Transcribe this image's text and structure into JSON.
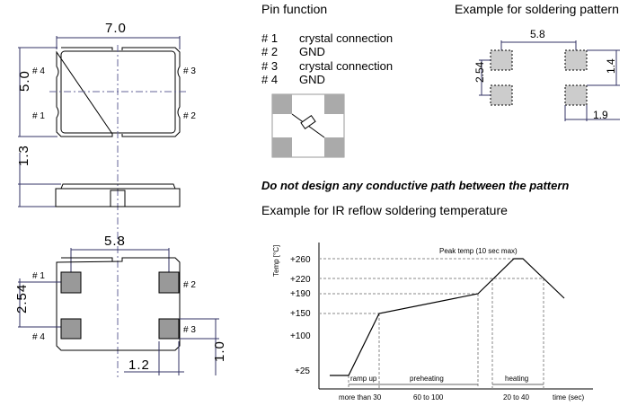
{
  "top_view": {
    "width": "7.0",
    "height": "5.0",
    "pins": [
      "# 4",
      "# 3",
      "# 1",
      "# 2"
    ]
  },
  "side_view": {
    "thickness": "1.3"
  },
  "bottom_view": {
    "pad_pitch_x": "5.8",
    "pad_pitch_y": "2.54",
    "pad_height": "1.0",
    "pad_width": "1.2",
    "pins": [
      "# 1",
      "# 2",
      "# 4",
      "# 3"
    ]
  },
  "pin_function": {
    "title": "Pin function",
    "rows": [
      {
        "pin": "# 1",
        "function": "crystal connection"
      },
      {
        "pin": "# 2",
        "function": "GND"
      },
      {
        "pin": "# 3",
        "function": "crystal connection"
      },
      {
        "pin": "# 4",
        "function": "GND"
      }
    ]
  },
  "soldering_pattern": {
    "title": "Example for soldering pattern",
    "pitch_x": "5.8",
    "pitch_y": "2.54",
    "pad_h": "1.4",
    "pad_w": "1.9"
  },
  "warning": "Do not design any conductive path between the pattern",
  "reflow": {
    "title": "Example for IR reflow soldering temperature",
    "y_label": "Temp [°C]",
    "peak_label": "Peak temp (10 sec max)",
    "y_ticks": [
      "+260",
      "+220",
      "+190",
      "+150",
      "+100",
      "+25"
    ],
    "phases": [
      "ramp up",
      "preheating",
      "heating"
    ],
    "durations": [
      "more than 30",
      "60 to 100",
      "20 to 40"
    ],
    "x_label": "time (sec)"
  }
}
